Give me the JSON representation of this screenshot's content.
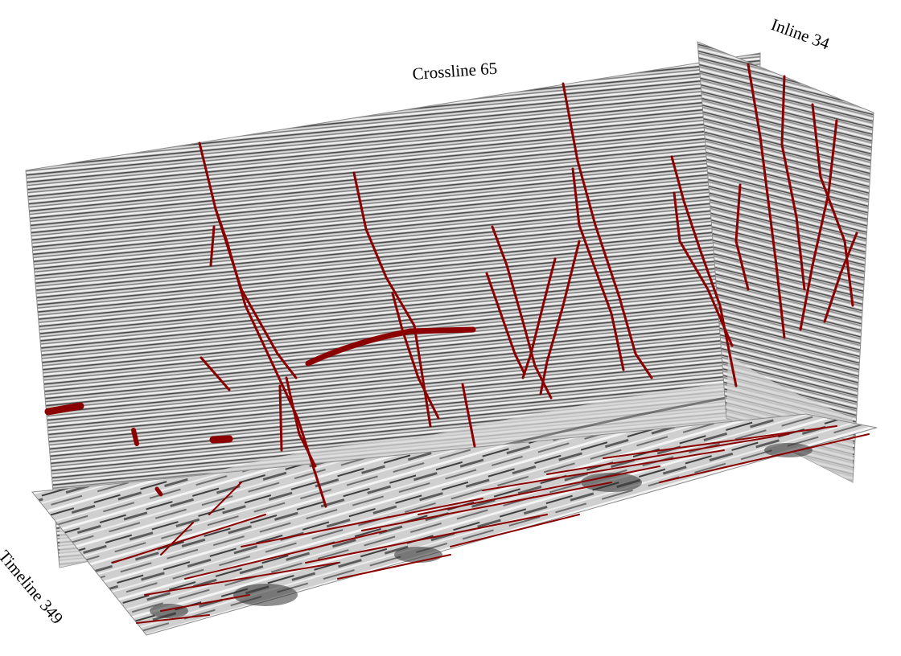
{
  "labels": {
    "crossline": "Crossline 65",
    "inline": "Inline 34",
    "timeline": "Timeline 349"
  },
  "colors": {
    "fault": "#8b0000",
    "seismic_light": "#e6e6e6",
    "seismic_dark": "#2a2a2a",
    "background": "#ffffff"
  }
}
